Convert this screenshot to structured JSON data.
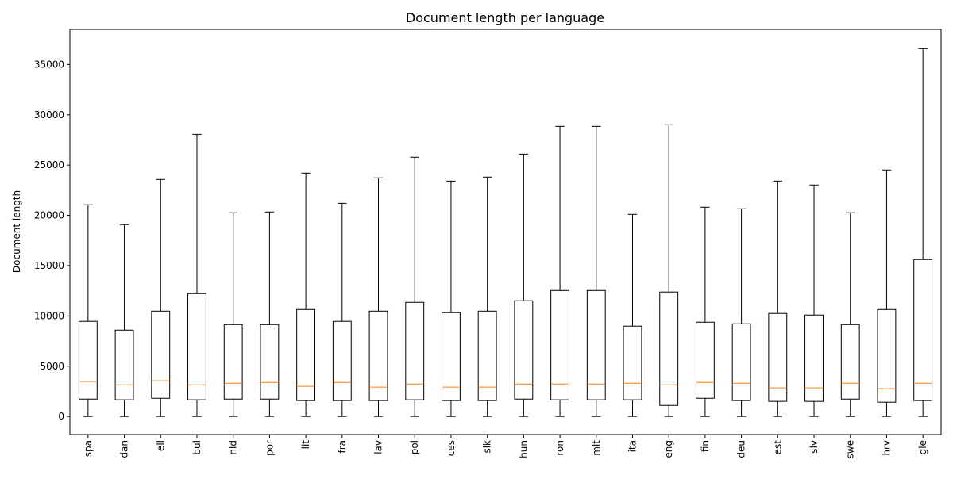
{
  "chart_data": {
    "type": "box",
    "title": "Document length per language",
    "ylabel": "Document length",
    "categories": [
      "spa",
      "dan",
      "ell",
      "bul",
      "nld",
      "por",
      "lit",
      "fra",
      "lav",
      "pol",
      "ces",
      "slk",
      "hun",
      "ron",
      "mlt",
      "ita",
      "eng",
      "fin",
      "deu",
      "est",
      "slv",
      "swe",
      "hrv",
      "gle"
    ],
    "whislo": [
      0,
      0,
      0,
      0,
      0,
      0,
      0,
      0,
      0,
      0,
      0,
      0,
      0,
      0,
      0,
      0,
      0,
      0,
      0,
      0,
      0,
      0,
      0,
      0
    ],
    "q1": [
      1730,
      1660,
      1810,
      1660,
      1730,
      1730,
      1580,
      1580,
      1580,
      1660,
      1580,
      1580,
      1730,
      1660,
      1660,
      1660,
      1100,
      1810,
      1580,
      1500,
      1500,
      1730,
      1420,
      1580
    ],
    "med": [
      3470,
      3150,
      3550,
      3150,
      3310,
      3390,
      3000,
      3390,
      2920,
      3230,
      2920,
      2920,
      3230,
      3230,
      3230,
      3310,
      3150,
      3390,
      3310,
      2840,
      2840,
      3310,
      2760,
      3310
    ],
    "q3": [
      9460,
      8590,
      10480,
      12220,
      9140,
      9140,
      10640,
      9460,
      10480,
      11350,
      10330,
      10480,
      11510,
      12530,
      12530,
      8990,
      12380,
      9380,
      9220,
      10250,
      10090,
      9140,
      10640,
      15610
    ],
    "whishi": [
      21050,
      19080,
      23570,
      28060,
      20260,
      20340,
      24200,
      21200,
      23730,
      25780,
      23410,
      23810,
      26090,
      28850,
      28850,
      20100,
      29010,
      20810,
      20650,
      23410,
      23020,
      20260,
      24520,
      36580
    ],
    "box_color": "#000000",
    "median_color": "#ff7f0e",
    "ylim": [
      -1800,
      38500
    ],
    "yticks": [
      0,
      5000,
      10000,
      15000,
      20000,
      25000,
      30000,
      35000
    ]
  }
}
